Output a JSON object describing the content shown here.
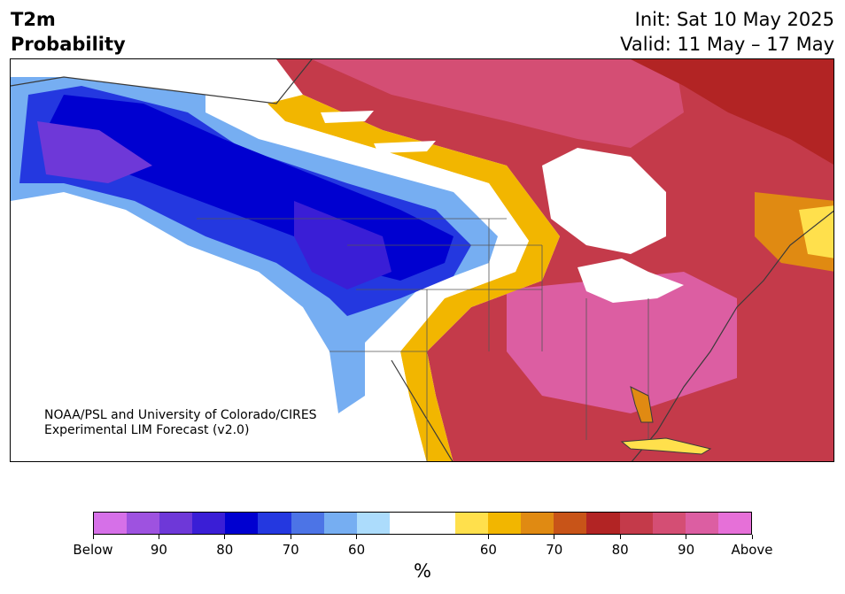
{
  "header": {
    "title_line1": "T2m",
    "title_line2": "Probability",
    "init": "Init: Sat 10 May 2025",
    "valid": "Valid: 11 May – 17 May"
  },
  "credit": {
    "line1": "NOAA/PSL and University of Colorado/CIRES",
    "line2": "Experimental LIM Forecast (v2.0)"
  },
  "colorbar": {
    "unit": "%",
    "colors": [
      "#d670e8",
      "#9e52e0",
      "#6e38d8",
      "#3a1ed6",
      "#0000d0",
      "#2438e0",
      "#4c74e6",
      "#76aef2",
      "#acdcfc",
      "#ffffff",
      "#ffffff",
      "#ffe04c",
      "#f2b600",
      "#e08a12",
      "#c85418",
      "#b22424",
      "#c43a4a",
      "#d44e74",
      "#dc5ea2",
      "#e670d8"
    ],
    "tick_labels": [
      "Below",
      "90",
      "80",
      "70",
      "60",
      "60",
      "70",
      "80",
      "90",
      "Above"
    ]
  },
  "map": {
    "description_colors": {
      "above": "#d44e74",
      "below": "#0000d0"
    }
  }
}
